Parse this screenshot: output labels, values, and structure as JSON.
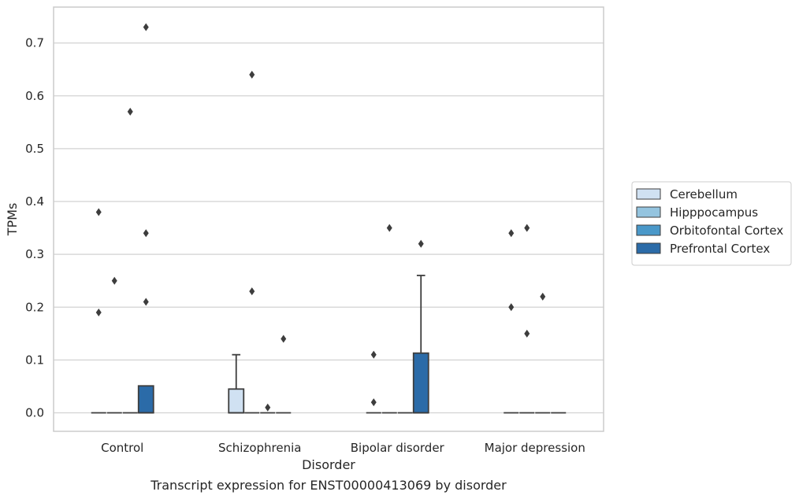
{
  "chart_data": {
    "type": "box",
    "title": "",
    "caption": "Transcript expression for ENST00000413069 by disorder",
    "xlabel": "Disorder",
    "ylabel": "TPMs",
    "categories": [
      "Control",
      "Schizophrenia",
      "Bipolar disorder",
      "Major depression"
    ],
    "ylim": [
      -0.035,
      0.768
    ],
    "yticks": [
      0.0,
      0.1,
      0.2,
      0.3,
      0.4,
      0.5,
      0.6,
      0.7
    ],
    "ytick_labels": [
      "0.0",
      "0.1",
      "0.2",
      "0.3",
      "0.4",
      "0.5",
      "0.6",
      "0.7"
    ],
    "grid": true,
    "legend_position": "right",
    "series": [
      {
        "name": "Cerebellum",
        "color": "#d0e1f2",
        "boxes": [
          {
            "q1": 0,
            "median": 0,
            "q3": 0,
            "whisker_low": 0,
            "whisker_high": 0,
            "outliers": [
              0.38,
              0.19
            ]
          },
          {
            "q1": 0,
            "median": 0,
            "q3": 0.045,
            "whisker_low": 0,
            "whisker_high": 0.11,
            "outliers": []
          },
          {
            "q1": 0,
            "median": 0,
            "q3": 0,
            "whisker_low": 0,
            "whisker_high": 0,
            "outliers": [
              0.11,
              0.02
            ]
          },
          {
            "q1": 0,
            "median": 0,
            "q3": 0,
            "whisker_low": 0,
            "whisker_high": 0,
            "outliers": [
              0.34,
              0.2
            ]
          }
        ]
      },
      {
        "name": "Hipppocampus",
        "color": "#94c4df",
        "boxes": [
          {
            "q1": 0,
            "median": 0,
            "q3": 0,
            "whisker_low": 0,
            "whisker_high": 0,
            "outliers": [
              0.25
            ]
          },
          {
            "q1": 0,
            "median": 0,
            "q3": 0,
            "whisker_low": 0,
            "whisker_high": 0,
            "outliers": [
              0.64,
              0.23
            ]
          },
          {
            "q1": 0,
            "median": 0,
            "q3": 0,
            "whisker_low": 0,
            "whisker_high": 0,
            "outliers": [
              0.35
            ]
          },
          {
            "q1": 0,
            "median": 0,
            "q3": 0,
            "whisker_low": 0,
            "whisker_high": 0,
            "outliers": [
              0.35,
              0.15
            ]
          }
        ]
      },
      {
        "name": "Orbitofontal Cortex",
        "color": "#4a98c9",
        "boxes": [
          {
            "q1": 0,
            "median": 0,
            "q3": 0,
            "whisker_low": 0,
            "whisker_high": 0,
            "outliers": [
              0.57
            ]
          },
          {
            "q1": 0,
            "median": 0,
            "q3": 0,
            "whisker_low": 0,
            "whisker_high": 0,
            "outliers": [
              0.01
            ]
          },
          {
            "q1": 0,
            "median": 0,
            "q3": 0,
            "whisker_low": 0,
            "whisker_high": 0,
            "outliers": []
          },
          {
            "q1": 0,
            "median": 0,
            "q3": 0,
            "whisker_low": 0,
            "whisker_high": 0,
            "outliers": [
              0.22
            ]
          }
        ]
      },
      {
        "name": "Prefrontal Cortex",
        "color": "#2b6ba8",
        "boxes": [
          {
            "q1": 0,
            "median": 0,
            "q3": 0.051,
            "whisker_low": 0,
            "whisker_high": 0.051,
            "outliers": [
              0.73,
              0.34,
              0.21
            ]
          },
          {
            "q1": 0,
            "median": 0,
            "q3": 0,
            "whisker_low": 0,
            "whisker_high": 0,
            "outliers": [
              0.14
            ]
          },
          {
            "q1": 0,
            "median": 0,
            "q3": 0.113,
            "whisker_low": 0,
            "whisker_high": 0.26,
            "outliers": [
              0.32
            ]
          },
          {
            "q1": 0,
            "median": 0,
            "q3": 0,
            "whisker_low": 0,
            "whisker_high": 0,
            "outliers": []
          }
        ]
      }
    ]
  }
}
